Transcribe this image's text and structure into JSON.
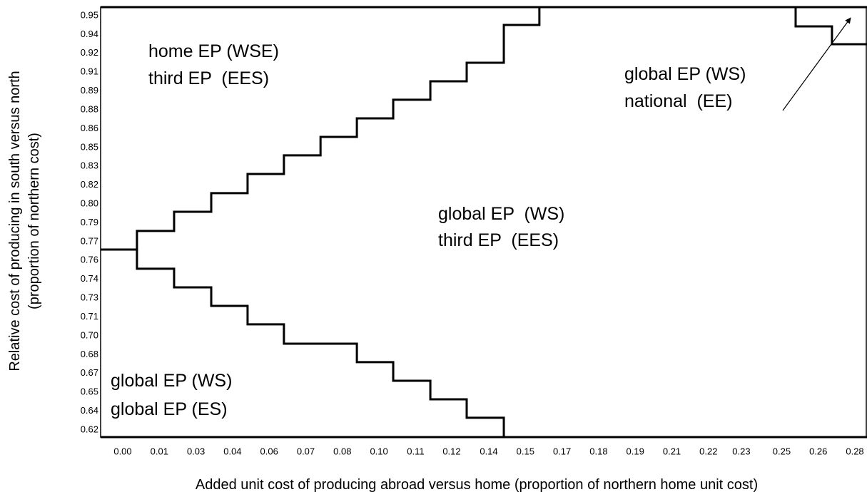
{
  "chart_data": {
    "type": "line",
    "xlabel": "Added unit cost of producing abroad versus home (proportion of northern home unit cost)",
    "ylabel": [
      "Relative cost of producing in south versus north",
      "(proportion of northern cost)"
    ],
    "xlim": [
      -0.0084,
      0.2826
    ],
    "ylim": [
      0.6143,
      0.9568
    ],
    "xticks": [
      {
        "value": 0,
        "label": "0.00"
      },
      {
        "value": 0.0139,
        "label": "0.01"
      },
      {
        "value": 0.0278,
        "label": "0.03"
      },
      {
        "value": 0.0417,
        "label": "0.04"
      },
      {
        "value": 0.0556,
        "label": "0.06"
      },
      {
        "value": 0.0695,
        "label": "0.07"
      },
      {
        "value": 0.0834,
        "label": "0.08"
      },
      {
        "value": 0.0973,
        "label": "0.10"
      },
      {
        "value": 0.1112,
        "label": "0.11"
      },
      {
        "value": 0.1249,
        "label": "0.12"
      },
      {
        "value": 0.139,
        "label": "0.14"
      },
      {
        "value": 0.1529,
        "label": "0.15"
      },
      {
        "value": 0.1668,
        "label": "0.17"
      },
      {
        "value": 0.1807,
        "label": "0.18"
      },
      {
        "value": 0.1946,
        "label": "0.19"
      },
      {
        "value": 0.2085,
        "label": "0.21"
      },
      {
        "value": 0.2224,
        "label": "0.22"
      },
      {
        "value": 0.2349,
        "label": "0.23"
      },
      {
        "value": 0.2502,
        "label": "0.25"
      },
      {
        "value": 0.2641,
        "label": "0.26"
      },
      {
        "value": 0.278,
        "label": "0.28"
      }
    ],
    "yticks": [
      0.62,
      {
        "value": 0.635,
        "label": "0.64"
      },
      0.65,
      {
        "value": 0.665,
        "label": "0.67"
      },
      0.68,
      {
        "value": 0.695,
        "label": "0.70"
      },
      0.71,
      {
        "value": 0.725,
        "label": "0.73"
      },
      0.74,
      {
        "value": 0.755,
        "label": "0.76"
      },
      0.77,
      {
        "value": 0.785,
        "label": "0.79"
      },
      {
        "value": 0.8,
        "label": "0.80"
      },
      {
        "value": 0.815,
        "label": "0.82"
      },
      0.83,
      {
        "value": 0.845,
        "label": "0.85"
      },
      0.86,
      {
        "value": 0.875,
        "label": "0.88"
      },
      0.89,
      {
        "value": 0.905,
        "label": "0.91"
      },
      0.92,
      {
        "value": 0.935,
        "label": "0.94"
      },
      0.95
    ],
    "grid": false,
    "series": [
      {
        "color": "#000000",
        "x": [
          -0.0084,
          0.0054,
          0.0054,
          0.0195,
          0.0195,
          0.0336,
          0.0336,
          0.0474,
          0.0474,
          0.0612,
          0.0612,
          0.0751,
          0.0751,
          0.0889,
          0.0889,
          0.1027,
          0.1027,
          0.1168,
          0.1168,
          0.1306,
          0.1306,
          0.1447,
          0.1447,
          0.1582,
          0.1582
        ],
        "values": [
          0.7637,
          0.7637,
          0.7785,
          0.7785,
          0.7938,
          0.7938,
          0.8086,
          0.8086,
          0.8239,
          0.8239,
          0.8387,
          0.8387,
          0.8534,
          0.8534,
          0.8682,
          0.8682,
          0.883,
          0.883,
          0.8977,
          0.8977,
          0.9125,
          0.9125,
          0.9426,
          0.9426,
          0.9568
        ]
      },
      {
        "color": "#000000",
        "x": [
          0.0054,
          0.0054,
          0.0195,
          0.0195,
          0.0336,
          0.0336,
          0.0474,
          0.0474,
          0.0612,
          0.0612,
          0.0889,
          0.0889,
          0.1027,
          0.1027,
          0.1168,
          0.1168,
          0.1306,
          0.1306,
          0.1447,
          0.1447
        ],
        "values": [
          0.7637,
          0.7484,
          0.7484,
          0.7336,
          0.7336,
          0.7188,
          0.7188,
          0.7041,
          0.7041,
          0.6887,
          0.6887,
          0.674,
          0.674,
          0.6592,
          0.6592,
          0.6444,
          0.6444,
          0.6297,
          0.6297,
          0.6143
        ]
      },
      {
        "color": "#000000",
        "x": [
          0.2555,
          0.2555,
          0.2693,
          0.2693,
          0.2826
        ],
        "values": [
          0.9568,
          0.9415,
          0.9415,
          0.9273,
          0.9273
        ]
      }
    ],
    "annotations": [
      [
        "home EP (WSE)",
        "third EP  (EES)"
      ],
      [
        "global EP (WS)",
        "national  (EE)"
      ],
      [
        "global EP  (WS)",
        "third EP  (EES)"
      ],
      [
        "global EP (WS)",
        "global EP (ES)"
      ]
    ]
  }
}
